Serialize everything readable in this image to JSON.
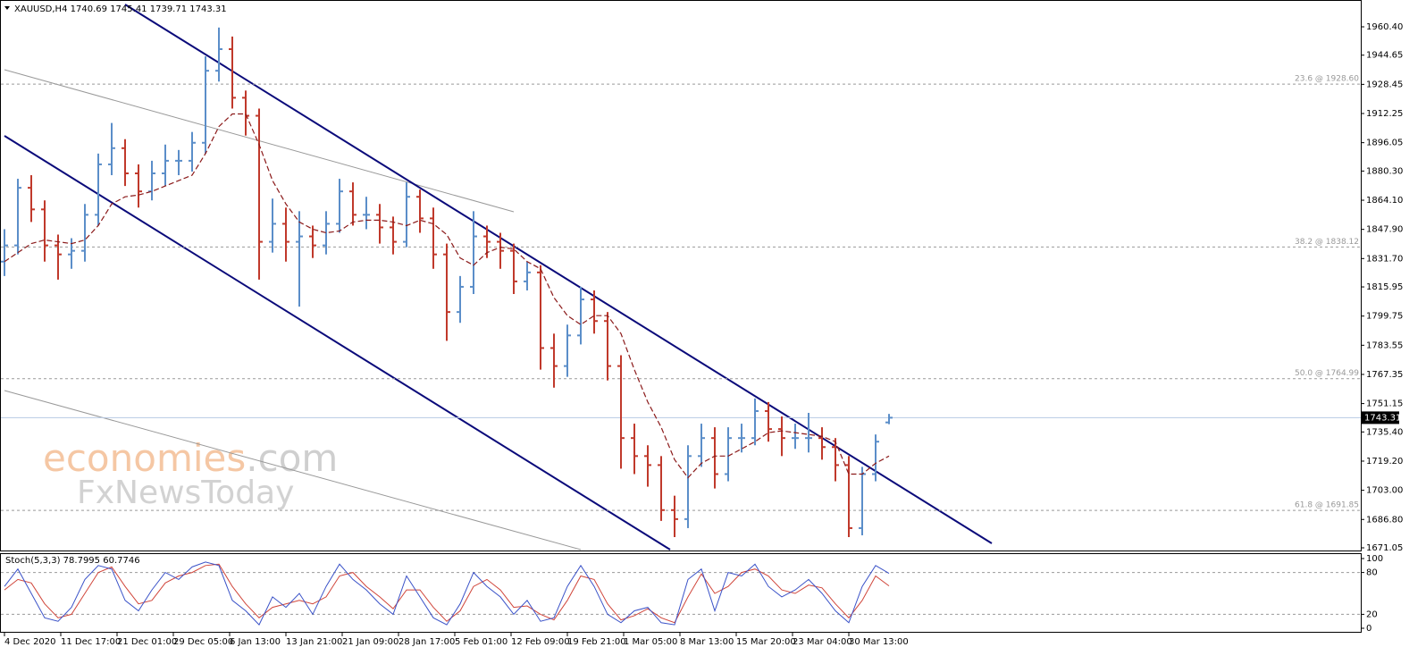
{
  "chart_data": {
    "type": "ohlc",
    "symbol": "XAUUSD,H4",
    "indicator": "Stoch(5,3,3)",
    "watermark": {
      "brand": "economies",
      "suffix": ".com",
      "line2": "FxNewsToday"
    },
    "up_color": "#5b8ec9",
    "down_color": "#c0392b",
    "ma_color": "#8b1a1a",
    "ohlc": [
      [
        1830,
        1848,
        1822,
        1839
      ],
      [
        1839,
        1876,
        1834,
        1871
      ],
      [
        1871,
        1878,
        1852,
        1859
      ],
      [
        1859,
        1864,
        1830,
        1839
      ],
      [
        1839,
        1845,
        1820,
        1834
      ],
      [
        1834,
        1843,
        1826,
        1836
      ],
      [
        1836,
        1862,
        1830,
        1856
      ],
      [
        1856,
        1890,
        1850,
        1884
      ],
      [
        1884,
        1907,
        1878,
        1893
      ],
      [
        1893,
        1898,
        1872,
        1879
      ],
      [
        1879,
        1884,
        1860,
        1869
      ],
      [
        1869,
        1886,
        1864,
        1879
      ],
      [
        1879,
        1895,
        1872,
        1886
      ],
      [
        1886,
        1892,
        1878,
        1886
      ],
      [
        1886,
        1902,
        1880,
        1896
      ],
      [
        1896,
        1944,
        1890,
        1936
      ],
      [
        1936,
        1960,
        1930,
        1948
      ],
      [
        1948,
        1955,
        1915,
        1921
      ],
      [
        1921,
        1925,
        1900,
        1911
      ],
      [
        1911,
        1915,
        1820,
        1841
      ],
      [
        1841,
        1865,
        1835,
        1851
      ],
      [
        1851,
        1860,
        1830,
        1841
      ],
      [
        1841,
        1858,
        1805,
        1844
      ],
      [
        1844,
        1850,
        1832,
        1839
      ],
      [
        1839,
        1858,
        1834,
        1851
      ],
      [
        1851,
        1876,
        1846,
        1869
      ],
      [
        1869,
        1874,
        1850,
        1856
      ],
      [
        1856,
        1866,
        1848,
        1856
      ],
      [
        1856,
        1862,
        1840,
        1849
      ],
      [
        1849,
        1855,
        1834,
        1841
      ],
      [
        1841,
        1874,
        1838,
        1866
      ],
      [
        1866,
        1870,
        1846,
        1854
      ],
      [
        1854,
        1860,
        1826,
        1834
      ],
      [
        1834,
        1840,
        1786,
        1802
      ],
      [
        1802,
        1822,
        1796,
        1816
      ],
      [
        1816,
        1858,
        1812,
        1844
      ],
      [
        1844,
        1850,
        1832,
        1841
      ],
      [
        1841,
        1846,
        1826,
        1836
      ],
      [
        1836,
        1840,
        1812,
        1819
      ],
      [
        1819,
        1830,
        1814,
        1824
      ],
      [
        1824,
        1828,
        1770,
        1782
      ],
      [
        1782,
        1790,
        1760,
        1772
      ],
      [
        1772,
        1795,
        1766,
        1789
      ],
      [
        1789,
        1816,
        1784,
        1809
      ],
      [
        1809,
        1814,
        1790,
        1797
      ],
      [
        1797,
        1802,
        1764,
        1772
      ],
      [
        1772,
        1778,
        1715,
        1732
      ],
      [
        1732,
        1740,
        1712,
        1722
      ],
      [
        1722,
        1728,
        1705,
        1717
      ],
      [
        1717,
        1722,
        1686,
        1692
      ],
      [
        1692,
        1700,
        1677,
        1687
      ],
      [
        1687,
        1728,
        1682,
        1722
      ],
      [
        1722,
        1740,
        1716,
        1732
      ],
      [
        1732,
        1738,
        1704,
        1712
      ],
      [
        1712,
        1738,
        1708,
        1732
      ],
      [
        1732,
        1740,
        1724,
        1732
      ],
      [
        1732,
        1754,
        1728,
        1747
      ],
      [
        1747,
        1752,
        1730,
        1737
      ],
      [
        1737,
        1744,
        1722,
        1732
      ],
      [
        1732,
        1740,
        1726,
        1732
      ],
      [
        1732,
        1746,
        1724,
        1732
      ],
      [
        1732,
        1738,
        1720,
        1727
      ],
      [
        1727,
        1732,
        1708,
        1717
      ],
      [
        1717,
        1722,
        1677,
        1682
      ],
      [
        1682,
        1716,
        1678,
        1712
      ],
      [
        1712,
        1734,
        1708,
        1730
      ],
      [
        1740.69,
        1745.41,
        1739.71,
        1743.31
      ]
    ],
    "ma": [
      1830,
      1835,
      1840,
      1842,
      1841,
      1840,
      1842,
      1850,
      1862,
      1866,
      1867,
      1869,
      1872,
      1875,
      1878,
      1890,
      1905,
      1912,
      1912,
      1895,
      1875,
      1862,
      1852,
      1848,
      1846,
      1847,
      1852,
      1853,
      1853,
      1852,
      1850,
      1853,
      1851,
      1845,
      1832,
      1828,
      1835,
      1838,
      1837,
      1830,
      1826,
      1810,
      1800,
      1795,
      1800,
      1800,
      1790,
      1770,
      1752,
      1738,
      1720,
      1710,
      1718,
      1722,
      1722,
      1726,
      1730,
      1735,
      1736,
      1735,
      1734,
      1733,
      1730,
      1712,
      1712,
      1718,
      1722
    ],
    "stoch_main": {
      "color": "#3a52c8",
      "values": [
        60,
        85,
        50,
        15,
        10,
        30,
        70,
        90,
        85,
        40,
        25,
        55,
        80,
        70,
        88,
        95,
        90,
        40,
        25,
        5,
        45,
        30,
        50,
        20,
        60,
        92,
        70,
        55,
        35,
        20,
        75,
        45,
        15,
        5,
        35,
        80,
        60,
        45,
        20,
        40,
        10,
        15,
        60,
        90,
        60,
        20,
        8,
        25,
        30,
        8,
        5,
        70,
        85,
        25,
        80,
        75,
        92,
        60,
        45,
        55,
        70,
        50,
        25,
        8,
        60,
        90,
        78.7995
      ]
    },
    "stoch_signal": {
      "color": "#d0453a",
      "values": [
        55,
        70,
        65,
        35,
        15,
        20,
        50,
        80,
        88,
        60,
        35,
        40,
        65,
        75,
        80,
        90,
        92,
        60,
        35,
        15,
        30,
        35,
        40,
        35,
        45,
        75,
        80,
        60,
        45,
        28,
        55,
        55,
        30,
        10,
        25,
        60,
        70,
        55,
        30,
        32,
        20,
        12,
        40,
        75,
        70,
        35,
        12,
        18,
        28,
        15,
        8,
        45,
        78,
        50,
        60,
        80,
        85,
        75,
        55,
        50,
        62,
        58,
        35,
        15,
        40,
        75,
        60.7746
      ]
    },
    "ylim": [
      1669.06,
      1975.29
    ],
    "yticks": [
      {
        "value": 1960.4,
        "label": "1960.40"
      },
      1944.65,
      1928.45,
      1912.25,
      1896.05,
      {
        "value": 1880.3,
        "label": "1880.30"
      },
      {
        "value": 1864.1,
        "label": "1864.10"
      },
      {
        "value": 1847.9,
        "label": "1847.90"
      },
      {
        "value": 1831.7,
        "label": "1831.70"
      },
      1815.95,
      1799.75,
      1783.55,
      1767.35,
      1751.15,
      {
        "value": 1735.4,
        "label": "1735.40"
      },
      {
        "value": 1719.2,
        "label": "1719.20"
      },
      {
        "value": 1703,
        "label": "1703.00"
      },
      {
        "value": 1686.8,
        "label": "1686.80"
      },
      1671.05
    ],
    "fib_levels": [
      {
        "value": 1928.6,
        "label": "23.6 @ 1928.60"
      },
      {
        "value": 1838.12,
        "label": "38.2 @ 1838.12"
      },
      {
        "value": 1764.99,
        "label": "50.0 @ 1764.99"
      },
      {
        "value": 1691.85,
        "label": "61.8 @ 1691.85"
      }
    ],
    "y2lim": [
      -6.4,
      107.7
    ],
    "y2ticks": [
      100,
      80,
      20,
      0
    ],
    "stoch_levels": [
      80,
      20
    ],
    "xticks": [
      {
        "value": 0,
        "label": "4 Dec 2020"
      },
      {
        "value": 4.2,
        "label": "11 Dec 17:00"
      },
      {
        "value": 8.4,
        "label": "21 Dec 01:00"
      },
      {
        "value": 12.6,
        "label": "29 Dec 05:00"
      },
      {
        "value": 16.8,
        "label": "6 Jan 13:00"
      },
      {
        "value": 21,
        "label": "13 Jan 21:00"
      },
      {
        "value": 25.2,
        "label": "21 Jan 09:00"
      },
      {
        "value": 29.4,
        "label": "28 Jan 17:00"
      },
      {
        "value": 33.6,
        "label": "5 Feb 01:00"
      },
      {
        "value": 37.8,
        "label": "12 Feb 09:00"
      },
      {
        "value": 42,
        "label": "19 Feb 21:00"
      },
      {
        "value": 46.2,
        "label": "1 Mar 05:00"
      },
      {
        "value": 50.4,
        "label": "8 Mar 13:00"
      },
      {
        "value": 54.6,
        "label": "15 Mar 20:00"
      },
      {
        "value": 58.8,
        "label": "23 Mar 04:00"
      },
      {
        "value": 63,
        "label": "30 Mar 13:00"
      }
    ]
  }
}
